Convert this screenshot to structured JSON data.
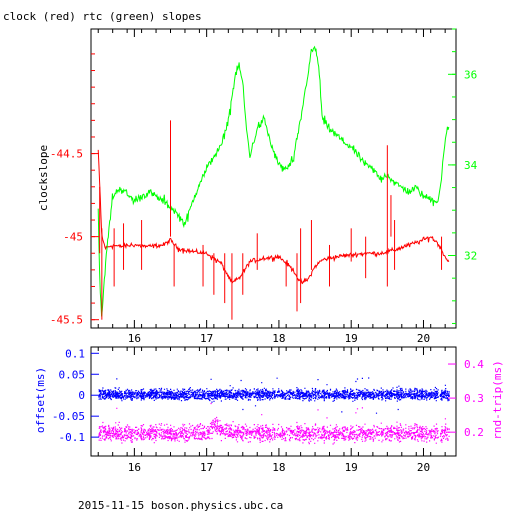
{
  "colors": {
    "clock": "#ff0000",
    "rtc": "#00ff00",
    "offset": "#0000ff",
    "roundtrip": "#ff00ff",
    "axes": "#000000"
  },
  "chart_data": [
    {
      "type": "line",
      "title": "clock (red) rtc (green) slopes",
      "ylabel": "clockslope",
      "xlim": [
        15.4,
        20.45
      ],
      "x_ticks": [
        16,
        17,
        18,
        19,
        20
      ],
      "ylim_left": [
        -45.55,
        -43.75
      ],
      "ylim_right": [
        30.4,
        37.0
      ],
      "left_ticks": [
        -44.5,
        -45,
        -45.5
      ],
      "left_tick_labels": [
        "-44.5",
        "-45",
        "-45.5"
      ],
      "right_ticks": [
        32,
        34,
        36
      ],
      "right_tick_labels": [
        "32",
        "34",
        "36"
      ],
      "series": [
        {
          "name": "clock",
          "axis": "left",
          "color": "#ff0000",
          "x": [
            15.5,
            15.55,
            15.6,
            15.7,
            15.8,
            16.0,
            16.2,
            16.4,
            16.5,
            16.6,
            16.8,
            17.0,
            17.2,
            17.35,
            17.45,
            17.6,
            17.8,
            18.0,
            18.2,
            18.3,
            18.4,
            18.5,
            18.6,
            18.8,
            19.0,
            19.2,
            19.4,
            19.6,
            19.8,
            20.0,
            20.1,
            20.2,
            20.3,
            20.35
          ],
          "y": [
            -44.48,
            -45.0,
            -45.07,
            -45.05,
            -45.06,
            -45.05,
            -45.06,
            -45.05,
            -45.02,
            -45.07,
            -45.09,
            -45.1,
            -45.16,
            -45.28,
            -45.25,
            -45.15,
            -45.13,
            -45.12,
            -45.2,
            -45.28,
            -45.26,
            -45.18,
            -45.14,
            -45.12,
            -45.11,
            -45.1,
            -45.1,
            -45.08,
            -45.05,
            -45.02,
            -45.0,
            -45.04,
            -45.12,
            -45.15
          ]
        },
        {
          "name": "rtc",
          "axis": "right",
          "color": "#00ff00",
          "x": [
            15.5,
            15.52,
            15.55,
            15.6,
            15.65,
            15.7,
            15.8,
            16.0,
            16.2,
            16.4,
            16.55,
            16.7,
            16.9,
            17.0,
            17.1,
            17.2,
            17.3,
            17.4,
            17.45,
            17.5,
            17.55,
            17.6,
            17.7,
            17.8,
            17.9,
            18.0,
            18.1,
            18.2,
            18.3,
            18.4,
            18.45,
            18.5,
            18.55,
            18.6,
            18.7,
            18.9,
            19.0,
            19.1,
            19.2,
            19.3,
            19.4,
            19.5,
            19.6,
            19.8,
            19.9,
            20.0,
            20.2,
            20.25,
            20.3,
            20.35
          ],
          "y": [
            33.0,
            31.5,
            30.6,
            31.8,
            32.6,
            33.3,
            33.5,
            33.2,
            33.4,
            33.2,
            33.0,
            32.7,
            33.6,
            33.9,
            34.2,
            34.4,
            35.0,
            36.0,
            36.2,
            35.8,
            34.8,
            34.2,
            34.8,
            35.0,
            34.4,
            34.0,
            33.9,
            34.1,
            35.0,
            36.0,
            36.5,
            36.6,
            36.2,
            35.0,
            34.8,
            34.5,
            34.4,
            34.2,
            34.0,
            33.9,
            33.7,
            33.8,
            33.6,
            33.4,
            33.5,
            33.3,
            33.2,
            33.7,
            34.6,
            34.8
          ]
        }
      ],
      "spikes": [
        {
          "x": 15.52,
          "axis": "left",
          "y_from": -44.7,
          "y_to": -45.1
        },
        {
          "x": 15.55,
          "axis": "left",
          "y_from": -44.95,
          "y_to": -45.5
        },
        {
          "x": 15.72,
          "axis": "left",
          "y_from": -44.95,
          "y_to": -45.3
        },
        {
          "x": 15.85,
          "axis": "left",
          "y_from": -44.92,
          "y_to": -45.2
        },
        {
          "x": 16.1,
          "axis": "left",
          "y_from": -44.9,
          "y_to": -45.2
        },
        {
          "x": 16.5,
          "axis": "left",
          "y_from": -44.3,
          "y_to": -45.0
        },
        {
          "x": 16.55,
          "axis": "left",
          "y_from": -45.05,
          "y_to": -45.3
        },
        {
          "x": 16.95,
          "axis": "left",
          "y_from": -45.05,
          "y_to": -45.3
        },
        {
          "x": 17.1,
          "axis": "left",
          "y_from": -45.1,
          "y_to": -45.35
        },
        {
          "x": 17.25,
          "axis": "left",
          "y_from": -45.1,
          "y_to": -45.4
        },
        {
          "x": 17.35,
          "axis": "left",
          "y_from": -45.1,
          "y_to": -45.5
        },
        {
          "x": 17.5,
          "axis": "left",
          "y_from": -45.1,
          "y_to": -45.35
        },
        {
          "x": 17.7,
          "axis": "left",
          "y_from": -44.98,
          "y_to": -45.2
        },
        {
          "x": 18.1,
          "axis": "left",
          "y_from": -45.15,
          "y_to": -45.3
        },
        {
          "x": 18.25,
          "axis": "left",
          "y_from": -45.1,
          "y_to": -45.45
        },
        {
          "x": 18.3,
          "axis": "left",
          "y_from": -44.95,
          "y_to": -45.4
        },
        {
          "x": 18.45,
          "axis": "left",
          "y_from": -44.9,
          "y_to": -45.2
        },
        {
          "x": 18.7,
          "axis": "left",
          "y_from": -45.05,
          "y_to": -45.3
        },
        {
          "x": 19.0,
          "axis": "left",
          "y_from": -44.95,
          "y_to": -45.15
        },
        {
          "x": 19.2,
          "axis": "left",
          "y_from": -45.0,
          "y_to": -45.25
        },
        {
          "x": 19.5,
          "axis": "left",
          "y_from": -44.45,
          "y_to": -45.3
        },
        {
          "x": 19.55,
          "axis": "left",
          "y_from": -44.75,
          "y_to": -45.0
        },
        {
          "x": 19.6,
          "axis": "left",
          "y_from": -44.9,
          "y_to": -45.2
        },
        {
          "x": 20.25,
          "axis": "left",
          "y_from": -45.0,
          "y_to": -45.2
        }
      ]
    },
    {
      "type": "scatter",
      "ylabel_left": "offset(ms)",
      "ylabel_right": "rnd-trip(ms)",
      "xlim": [
        15.4,
        20.45
      ],
      "x_ticks": [
        16,
        17,
        18,
        19,
        20
      ],
      "ylim_left": [
        -0.145,
        0.115
      ],
      "ylim_right": [
        0.13,
        0.45
      ],
      "left_ticks": [
        0.1,
        0.05,
        0,
        -0.05,
        -0.1
      ],
      "left_tick_labels": [
        "0.1",
        "0.05",
        "0",
        "-0.05",
        "-0.1"
      ],
      "right_ticks": [
        0.4,
        0.3,
        0.2
      ],
      "right_tick_labels": [
        "0.4",
        "0.3",
        "0.2"
      ],
      "series": [
        {
          "name": "offset",
          "axis": "left",
          "color": "#0000ff",
          "x": [
            15.5,
            16.0,
            16.5,
            17.0,
            17.5,
            18.0,
            18.5,
            19.0,
            19.5,
            20.0,
            20.35
          ],
          "center": [
            0.003,
            0.003,
            0.003,
            0.002,
            0.003,
            0.003,
            0.003,
            0.003,
            0.003,
            0.003,
            0.003
          ],
          "spread": [
            0.018,
            0.018,
            0.018,
            0.018,
            0.018,
            0.018,
            0.018,
            0.018,
            0.018,
            0.018,
            0.018
          ]
        },
        {
          "name": "roundtrip",
          "axis": "right",
          "color": "#ff00ff",
          "x": [
            15.5,
            16.0,
            16.5,
            17.0,
            17.1,
            17.2,
            17.5,
            18.0,
            18.5,
            19.0,
            19.5,
            20.0,
            20.35
          ],
          "center": [
            0.2,
            0.198,
            0.198,
            0.2,
            0.225,
            0.205,
            0.198,
            0.198,
            0.198,
            0.198,
            0.198,
            0.198,
            0.198
          ],
          "spread": [
            0.035,
            0.035,
            0.035,
            0.035,
            0.035,
            0.035,
            0.035,
            0.035,
            0.035,
            0.035,
            0.035,
            0.035,
            0.035
          ]
        }
      ]
    }
  ],
  "footer": {
    "host": "2015-11-15  boson.physics.ubc.ca"
  }
}
